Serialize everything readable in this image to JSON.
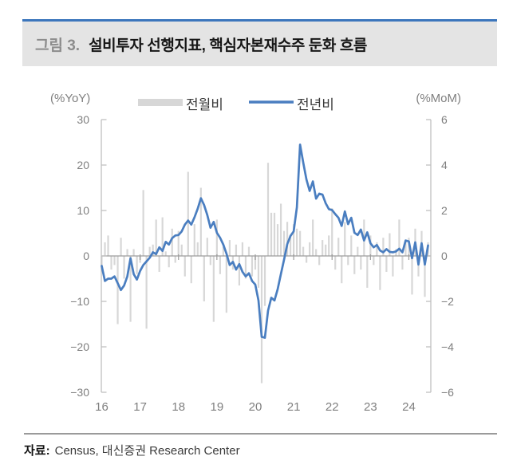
{
  "figure": {
    "label": "그림 3.",
    "title": "설비투자 선행지표, 핵심자본재수주 둔화 흐름"
  },
  "source_line": {
    "prefix": "자료:",
    "text": "Census, 대신증권 Research Center"
  },
  "colors": {
    "accent_line": "#4a7ec0",
    "bar": "#d7d7d7",
    "title_band_bg": "#e4e4e4",
    "title_band_top": "#3c76bc",
    "muted_text": "#7f7f7f",
    "legend_text": "#3a3a3a",
    "zero_line": "#9c9c9c",
    "axis": "#bfbfbf"
  },
  "chart_data": {
    "type": "bar+line dual-axis, monthly",
    "title": "",
    "legend": {
      "position": "top",
      "entries": [
        {
          "label": "전월비",
          "series_type": "bar",
          "color": "#d7d7d7"
        },
        {
          "label": "전년비",
          "series_type": "line",
          "color": "#4a7ec0"
        }
      ]
    },
    "left_axis": {
      "title": "(%YoY)",
      "ticks": [
        30,
        20,
        10,
        0,
        -10,
        -20,
        -30
      ],
      "range": [
        -30,
        30
      ]
    },
    "right_axis": {
      "title": "(%MoM)",
      "ticks": [
        6,
        4,
        2,
        0,
        -2,
        -4,
        -6
      ],
      "range": [
        -6,
        6
      ]
    },
    "x_axis": {
      "tick_labels": [
        "16",
        "17",
        "18",
        "19",
        "20",
        "21",
        "22",
        "23",
        "24"
      ],
      "start_month": "2016-01",
      "end_month": "2024-07",
      "months": 103,
      "grid": false
    },
    "series": [
      {
        "name": "전월비",
        "axis": "right",
        "type": "bar",
        "unit": "%MoM",
        "values": [
          -0.5,
          0.6,
          0.9,
          -0.6,
          -0.4,
          -3.0,
          0.8,
          -1.0,
          0.3,
          -2.9,
          0.3,
          -0.8,
          -0.3,
          2.9,
          -3.2,
          0.4,
          0.5,
          1.6,
          -0.7,
          1.7,
          0.2,
          -0.5,
          1.2,
          -0.3,
          1.1,
          0.5,
          -0.9,
          3.7,
          -1.2,
          1.4,
          0.6,
          3.0,
          -2.0,
          0.8,
          -0.4,
          -2.9,
          1.6,
          -0.8,
          0.4,
          -2.5,
          0.7,
          -0.6,
          0.5,
          -1.3,
          0.6,
          -1.0,
          0.4,
          -0.9,
          -0.6,
          -1.4,
          -5.6,
          -2.2,
          4.1,
          1.9,
          1.9,
          1.4,
          2.3,
          1.1,
          1.5,
          0.9,
          1.4,
          1.2,
          1.1,
          0.4,
          -0.3,
          0.6,
          1.6,
          0.3,
          -0.4,
          0.7,
          0.5,
          0.9,
          2.1,
          -0.6,
          0.8,
          -1.2,
          1.5,
          -0.4,
          0.9,
          -0.8,
          0.4,
          -0.6,
          1.6,
          -1.4,
          0.9,
          -0.4,
          0.6,
          -1.5,
          0.8,
          -0.7,
          1.0,
          -0.9,
          0.3,
          1.6,
          -0.6,
          0.7,
          0.8,
          -1.7,
          1.2,
          -0.9,
          1.1,
          -1.8,
          0.6
        ]
      },
      {
        "name": "전년비",
        "axis": "left",
        "type": "line",
        "unit": "%YoY",
        "values": [
          -2.2,
          -5.5,
          -5.0,
          -5.0,
          -4.5,
          -6.0,
          -7.5,
          -6.5,
          -4.5,
          -0.5,
          -4.0,
          -5.2,
          -3.3,
          -2.0,
          -1.2,
          -0.4,
          0.8,
          0.4,
          1.9,
          1.1,
          3.1,
          2.5,
          3.9,
          4.5,
          4.6,
          5.4,
          6.9,
          7.8,
          6.9,
          8.5,
          10.4,
          12.7,
          11.2,
          9.0,
          6.2,
          7.5,
          5.1,
          4.0,
          2.5,
          0.5,
          -2.0,
          -1.3,
          -3.0,
          -1.8,
          -3.5,
          -4.5,
          -3.8,
          -5.5,
          -6.3,
          -9.8,
          -17.8,
          -18.0,
          -12.0,
          -9.2,
          -9.8,
          -7.3,
          -4.0,
          -0.8,
          2.6,
          4.4,
          5.4,
          10.7,
          24.5,
          20.5,
          16.8,
          14.3,
          16.4,
          12.6,
          13.7,
          13.5,
          11.6,
          10.3,
          10.1,
          9.2,
          8.4,
          6.6,
          9.8,
          7.0,
          8.4,
          5.1,
          4.6,
          5.8,
          3.4,
          5.2,
          2.8,
          1.9,
          2.4,
          1.2,
          0.8,
          1.5,
          0.9,
          0.8,
          1.0,
          1.6,
          0.8,
          3.4,
          3.2,
          -0.5,
          3.0,
          -1.9,
          2.8,
          -1.9,
          2.3
        ]
      }
    ]
  }
}
